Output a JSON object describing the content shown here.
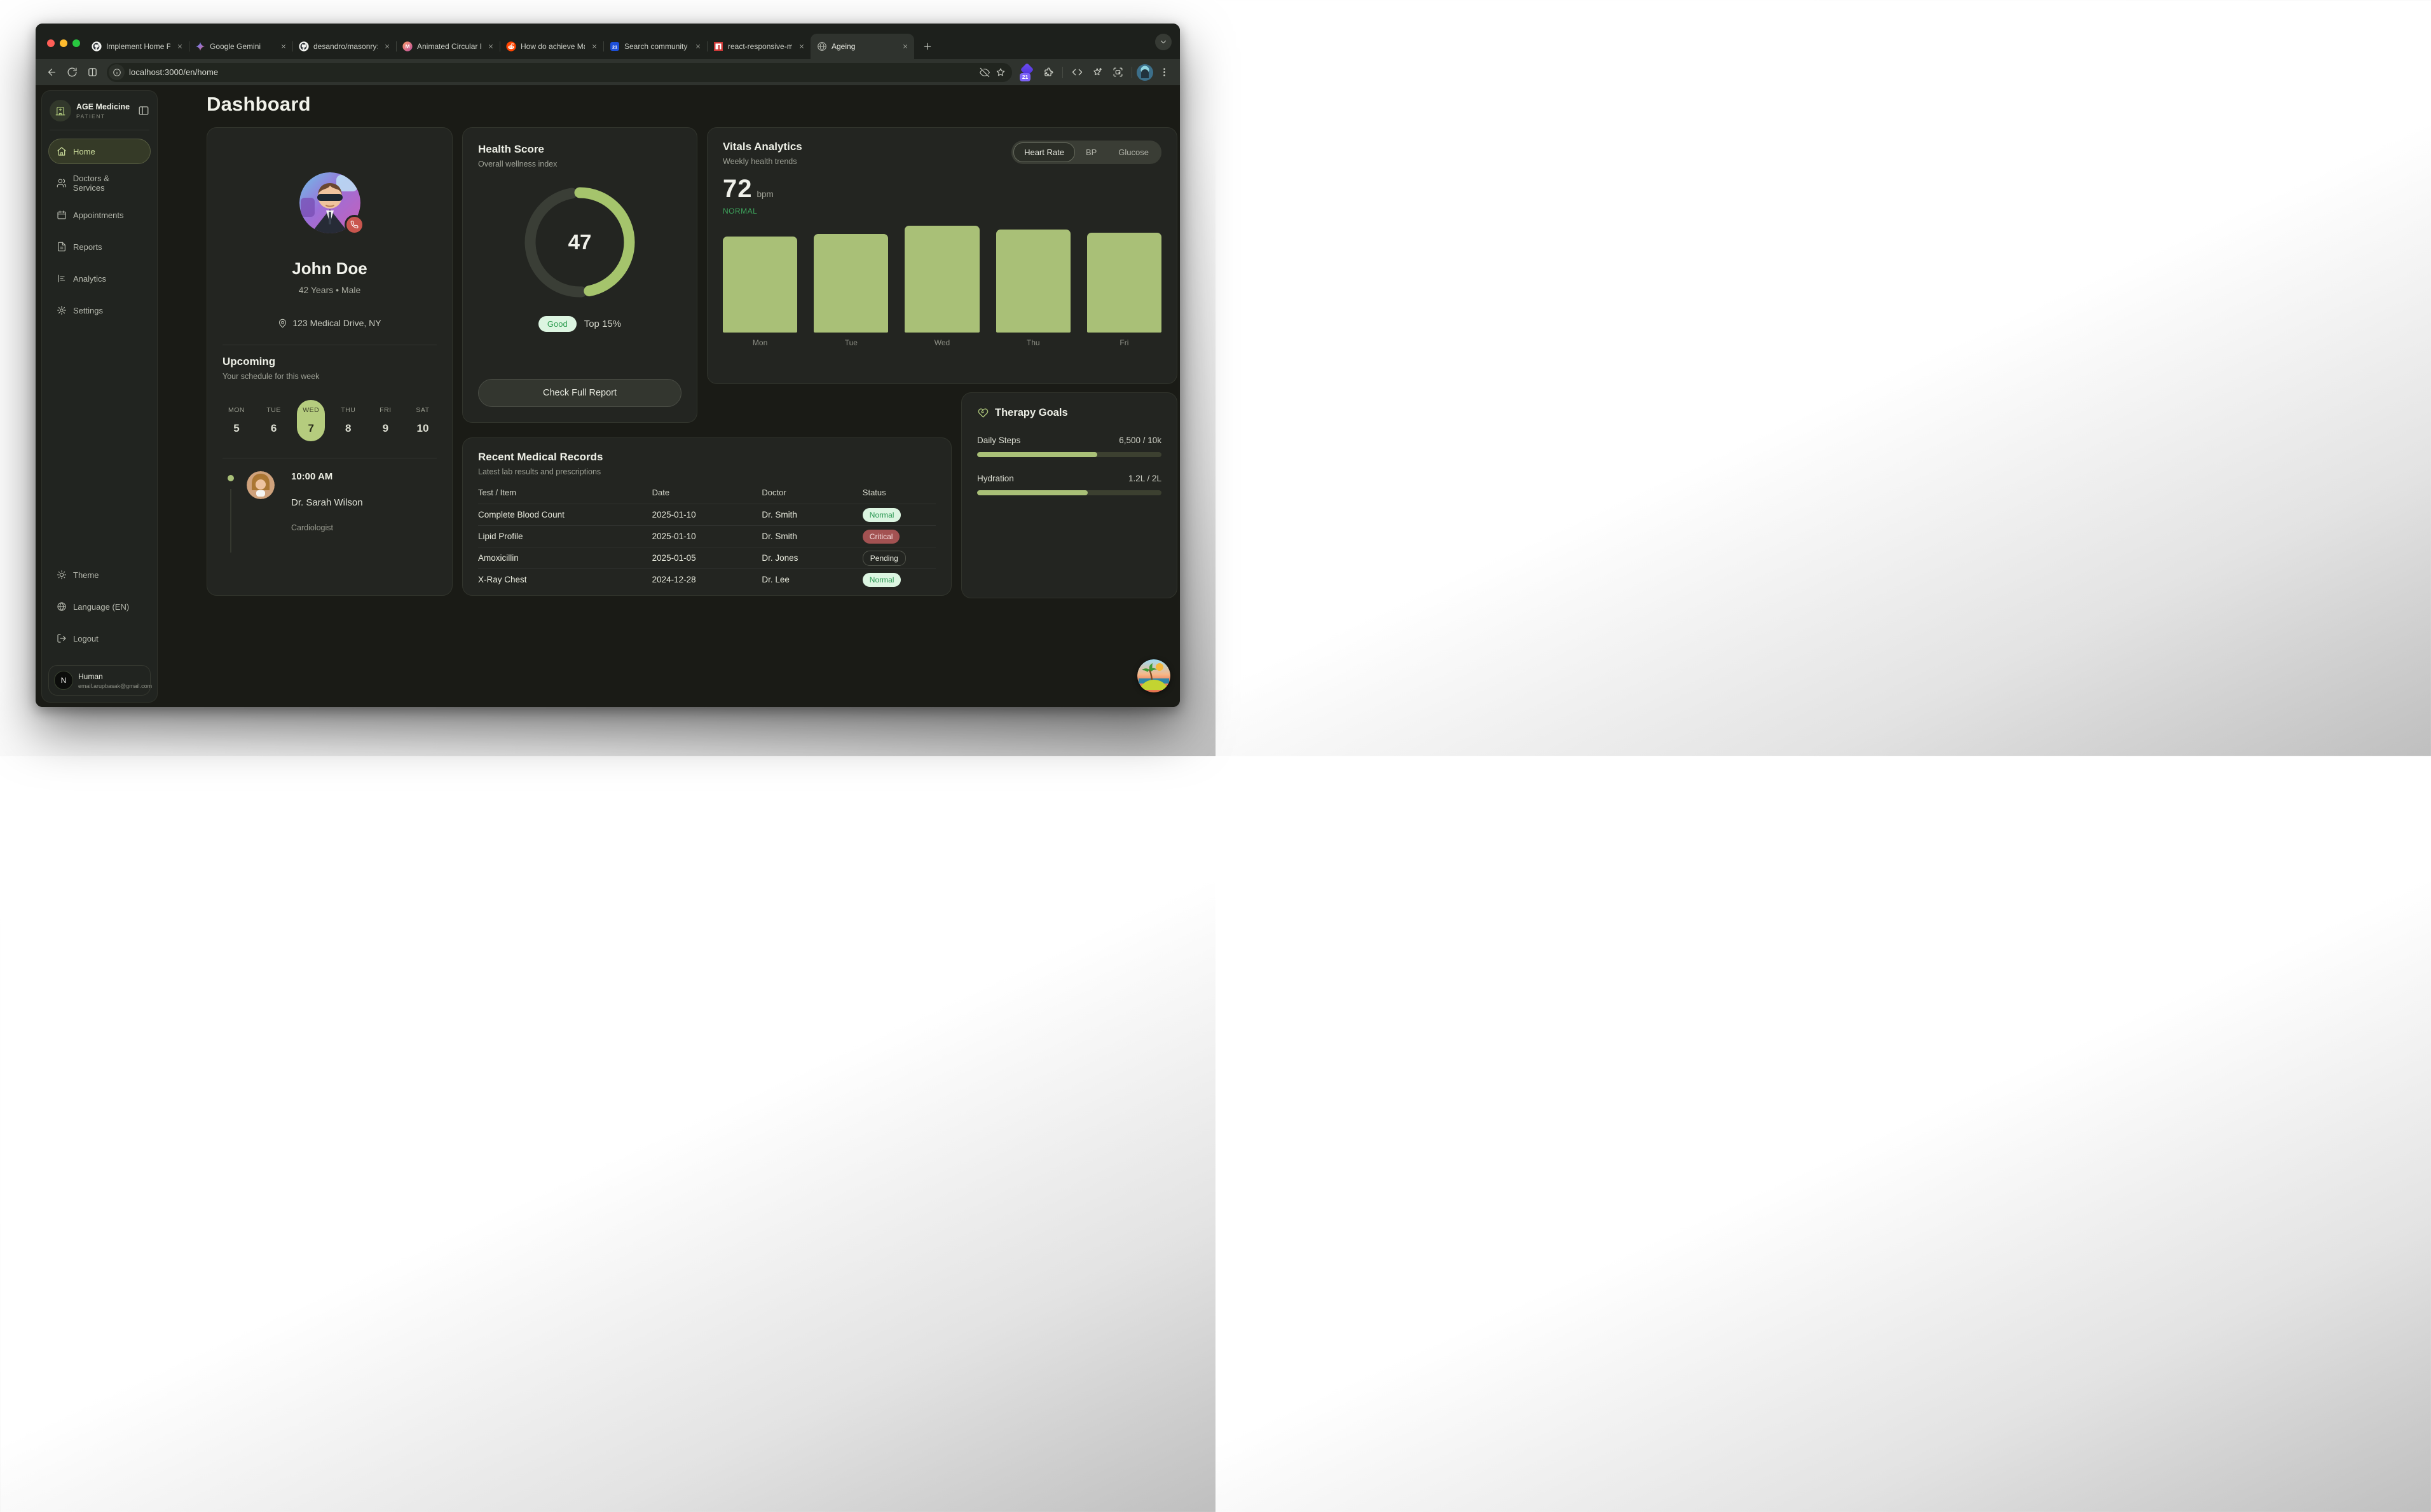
{
  "browser": {
    "tabs": [
      {
        "title": "Implement Home Page",
        "icon": "github"
      },
      {
        "title": "Google Gemini",
        "icon": "gemini"
      },
      {
        "title": "desandro/masonry: :lo",
        "icon": "github"
      },
      {
        "title": "Animated Circular Prog",
        "icon": "m-gradient"
      },
      {
        "title": "How do achieve Masor",
        "icon": "reddit"
      },
      {
        "title": "Search community UI",
        "icon": "blue-21"
      },
      {
        "title": "react-responsive-mas",
        "icon": "npm"
      },
      {
        "title": "Ageing",
        "icon": "globe",
        "active": true
      }
    ],
    "url": "localhost:3000/en/home",
    "extension_badge": "21"
  },
  "sidebar": {
    "brand": {
      "name": "AGE Medicine",
      "role": "PATIENT"
    },
    "nav": [
      {
        "label": "Home",
        "icon": "home",
        "active": true
      },
      {
        "label": "Doctors & Services",
        "icon": "users"
      },
      {
        "label": "Appointments",
        "icon": "calendar"
      },
      {
        "label": "Reports",
        "icon": "file"
      },
      {
        "label": "Analytics",
        "icon": "chart"
      },
      {
        "label": "Settings",
        "icon": "gear"
      }
    ],
    "footer": [
      {
        "label": "Theme",
        "icon": "sun"
      },
      {
        "label": "Language (EN)",
        "icon": "globe-line"
      },
      {
        "label": "Logout",
        "icon": "logout"
      }
    ],
    "user": {
      "initial": "N",
      "name": "Human",
      "email": "email.arupbasak@gmail.com"
    }
  },
  "page": {
    "title": "Dashboard"
  },
  "patient": {
    "name": "John Doe",
    "meta": "42 Years • Male",
    "address": "123 Medical Drive, NY",
    "upcoming": {
      "title": "Upcoming",
      "subtitle": "Your schedule for this week",
      "days": [
        {
          "label": "MON",
          "num": "5"
        },
        {
          "label": "TUE",
          "num": "6"
        },
        {
          "label": "WED",
          "num": "7",
          "active": true
        },
        {
          "label": "THU",
          "num": "8"
        },
        {
          "label": "FRI",
          "num": "9"
        },
        {
          "label": "SAT",
          "num": "10"
        }
      ],
      "appointment": {
        "time": "10:00 AM",
        "doctor": "Dr. Sarah Wilson",
        "specialty": "Cardiologist"
      }
    }
  },
  "health": {
    "title": "Health Score",
    "subtitle": "Overall wellness index",
    "score": "47",
    "score_pct": 47,
    "badge": "Good",
    "rank": "Top 15%",
    "button": "Check Full Report"
  },
  "vitals": {
    "title": "Vitals Analytics",
    "subtitle": "Weekly health trends",
    "tabs": [
      "Heart Rate",
      "BP",
      "Glucose"
    ],
    "active_tab": "Heart Rate",
    "value": "72",
    "unit": "bpm",
    "status": "NORMAL"
  },
  "chart_data": {
    "type": "bar",
    "categories": [
      "Mon",
      "Tue",
      "Wed",
      "Thu",
      "Fri"
    ],
    "values": [
      70,
      72,
      78,
      75,
      73
    ],
    "title": "Weekly health trends (Heart Rate)",
    "xlabel": "",
    "ylabel": "bpm",
    "ylim": [
      0,
      78
    ],
    "bar_color": "#a9c077",
    "grid": false,
    "legend": "none"
  },
  "records": {
    "title": "Recent Medical Records",
    "subtitle": "Latest lab results and prescriptions",
    "columns": [
      "Test / Item",
      "Date",
      "Doctor",
      "Status"
    ],
    "rows": [
      {
        "item": "Complete Blood Count",
        "date": "2025-01-10",
        "doctor": "Dr. Smith",
        "status": "Normal",
        "variant": "normal"
      },
      {
        "item": "Lipid Profile",
        "date": "2025-01-10",
        "doctor": "Dr. Smith",
        "status": "Critical",
        "variant": "critical"
      },
      {
        "item": "Amoxicillin",
        "date": "2025-01-05",
        "doctor": "Dr. Jones",
        "status": "Pending",
        "variant": "pending"
      },
      {
        "item": "X-Ray Chest",
        "date": "2024-12-28",
        "doctor": "Dr. Lee",
        "status": "Normal",
        "variant": "normal"
      }
    ]
  },
  "therapy": {
    "title": "Therapy Goals",
    "goals": [
      {
        "label": "Daily Steps",
        "value": "6,500 / 10k",
        "pct": 65
      },
      {
        "label": "Hydration",
        "value": "1.2L / 2L",
        "pct": 60
      }
    ]
  },
  "colors": {
    "accent": "#a9c077",
    "good_green": "#2f9e52",
    "critical_red": "#a35252",
    "normal_green": "#3da35c"
  }
}
